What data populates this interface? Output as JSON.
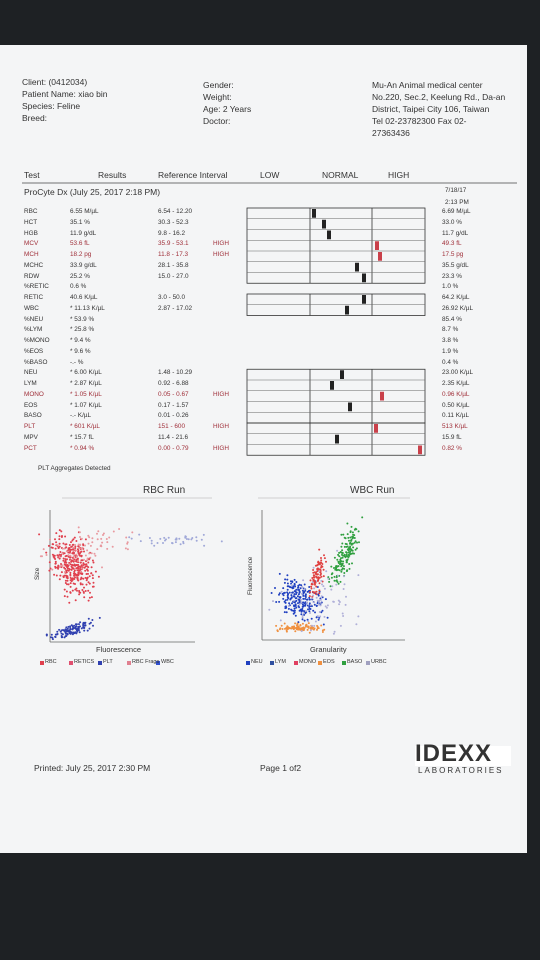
{
  "header": {
    "client": "Client: (0412034)",
    "patient": "Patient Name: xiao bin",
    "species": "Species: Feline",
    "breed": "Breed:",
    "gender": "Gender:",
    "weight": "Weight:",
    "age": "Age: 2 Years",
    "doctor": "Doctor:",
    "clinic": [
      "Mu-An Animal medical center",
      "No.220, Sec.2, Keelung Rd., Da-an",
      "District, Taipei City 106, Taiwan",
      "Tel 02-23782300  Fax 02-",
      "27363436"
    ]
  },
  "columns": [
    "Test",
    "Results",
    "Reference Interval",
    "LOW",
    "NORMAL",
    "HIGH"
  ],
  "instrument": "ProCyte Dx (July 25, 2017 2:18 PM)",
  "previous_date": [
    "7/18/17",
    "2:13 PM"
  ],
  "rows": [
    {
      "test": "RBC",
      "result": "6.55 M/µL",
      "reference": "6.54 - 12.20",
      "previous": "6.69 M/µL"
    },
    {
      "test": "HCT",
      "result": "35.1 %",
      "reference": "30.3 - 52.3",
      "previous": "33.0 %"
    },
    {
      "test": "HGB",
      "result": "11.9 g/dL",
      "reference": "9.8 - 16.2",
      "previous": "11.7 g/dL"
    },
    {
      "test": "MCV",
      "result": "53.6 fL",
      "reference": "35.9 - 53.1",
      "flag": "HIGH",
      "previous": "49.3 fL"
    },
    {
      "test": "MCH",
      "result": "18.2 pg",
      "reference": "11.8 - 17.3",
      "flag": "HIGH",
      "previous": "17.5 pg"
    },
    {
      "test": "MCHC",
      "result": "33.9 g/dL",
      "reference": "28.1 - 35.8",
      "previous": "35.5 g/dL"
    },
    {
      "test": "RDW",
      "result": "25.2 %",
      "reference": "15.0 - 27.0",
      "previous": "23.3 %"
    },
    {
      "test": "%RETIC",
      "result": "0.6 %",
      "previous": "1.0 %"
    },
    {
      "test": "RETIC",
      "result": "40.6 K/µL",
      "reference": "3.0 - 50.0",
      "previous": "64.2 K/µL"
    },
    {
      "test": "WBC",
      "result": "* 11.13 K/µL",
      "reference": "2.87 - 17.02",
      "previous": "26.92 K/µL"
    },
    {
      "test": "%NEU",
      "result": "* 53.9 %",
      "previous": "85.4 %"
    },
    {
      "test": "%LYM",
      "result": "* 25.8 %",
      "previous": "8.7 %"
    },
    {
      "test": "%MONO",
      "result": "* 9.4 %",
      "previous": "3.8 %"
    },
    {
      "test": "%EOS",
      "result": "* 9.6 %",
      "previous": "1.9 %"
    },
    {
      "test": "%BASO",
      "result": "-.- %",
      "previous": "0.4 %"
    },
    {
      "test": "NEU",
      "result": "* 6.00 K/µL",
      "reference": "1.48 - 10.29",
      "previous": "23.00 K/µL"
    },
    {
      "test": "LYM",
      "result": "* 2.87 K/µL",
      "reference": "0.92 - 6.88",
      "previous": "2.35 K/µL"
    },
    {
      "test": "MONO",
      "result": "* 1.05 K/µL",
      "reference": "0.05 - 0.67",
      "flag": "HIGH",
      "previous": "0.96 K/µL"
    },
    {
      "test": "EOS",
      "result": "* 1.07 K/µL",
      "reference": "0.17 - 1.57",
      "previous": "0.50 K/µL"
    },
    {
      "test": "BASO",
      "result": "-.- K/µL",
      "reference": "0.01 - 0.26",
      "previous": "0.11 K/µL"
    },
    {
      "test": "PLT",
      "result": "* 601 K/µL",
      "reference": "151 - 600",
      "flag": "HIGH",
      "previous": "513 K/µL"
    },
    {
      "test": "MPV",
      "result": "* 15.7 fL",
      "reference": "11.4 - 21.6",
      "previous": "15.9 fL"
    },
    {
      "test": "PCT",
      "result": "* 0.94 %",
      "reference": "0.00 - 0.79",
      "flag": "HIGH",
      "previous": "0.82 %"
    }
  ],
  "note": "PLT Aggregates Detected",
  "rbc_run": {
    "title": "RBC Run",
    "y_label": "Size",
    "x_label": "Fluorescence",
    "legend": [
      "RBC",
      "RETICS",
      "PLT",
      "RBC Frags",
      "WBC"
    ]
  },
  "wbc_run": {
    "title": "WBC Run",
    "y_label": "Fluorescence",
    "x_label": "Granularity",
    "legend": [
      "NEU",
      "LYM",
      "MONO",
      "EOS",
      "BASO",
      "URBC"
    ]
  },
  "footer": {
    "printed": "Printed: July 25, 2017 2:30 PM",
    "page": "Page 1 of2",
    "logo": "IDEXX",
    "logo_sub": "LABORATORIES"
  }
}
